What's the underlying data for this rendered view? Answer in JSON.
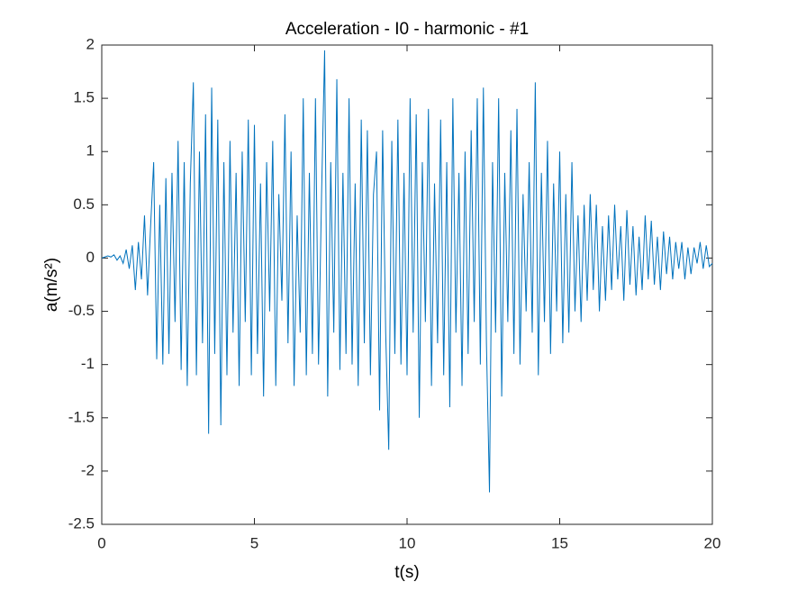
{
  "chart_data": {
    "type": "line",
    "title": "Acceleration - I0 - harmonic - #1",
    "xlabel": "t(s)",
    "ylabel": "a(m/s²)",
    "color": "#0072BD",
    "x": [
      0,
      0.1,
      0.2,
      0.3,
      0.4,
      0.5,
      0.6,
      0.7,
      0.8,
      0.9,
      1,
      1.1,
      1.2,
      1.3,
      1.4,
      1.5,
      1.6,
      1.7,
      1.8,
      1.9,
      2,
      2.1,
      2.2,
      2.3,
      2.4,
      2.5,
      2.6,
      2.7,
      2.8,
      2.9,
      3,
      3.1,
      3.2,
      3.3,
      3.4,
      3.5,
      3.6,
      3.7,
      3.8,
      3.9,
      4,
      4.1,
      4.2,
      4.3,
      4.4,
      4.5,
      4.6,
      4.7,
      4.8,
      4.9,
      5,
      5.1,
      5.2,
      5.3,
      5.4,
      5.5,
      5.6,
      5.7,
      5.8,
      5.9,
      6,
      6.1,
      6.2,
      6.3,
      6.4,
      6.5,
      6.6,
      6.7,
      6.8,
      6.9,
      7,
      7.1,
      7.2,
      7.3,
      7.4,
      7.5,
      7.6,
      7.7,
      7.8,
      7.9,
      8,
      8.1,
      8.2,
      8.3,
      8.4,
      8.5,
      8.6,
      8.7,
      8.8,
      8.9,
      9,
      9.1,
      9.2,
      9.3,
      9.4,
      9.5,
      9.6,
      9.7,
      9.8,
      9.9,
      10,
      10.1,
      10.2,
      10.3,
      10.4,
      10.5,
      10.6,
      10.7,
      10.8,
      10.9,
      11,
      11.1,
      11.2,
      11.3,
      11.4,
      11.5,
      11.6,
      11.7,
      11.8,
      11.9,
      12,
      12.1,
      12.2,
      12.3,
      12.4,
      12.5,
      12.6,
      12.7,
      12.8,
      12.9,
      13,
      13.1,
      13.2,
      13.3,
      13.4,
      13.5,
      13.6,
      13.7,
      13.8,
      13.9,
      14,
      14.1,
      14.2,
      14.3,
      14.4,
      14.5,
      14.6,
      14.7,
      14.8,
      14.9,
      15,
      15.1,
      15.2,
      15.3,
      15.4,
      15.5,
      15.6,
      15.7,
      15.8,
      15.9,
      16,
      16.1,
      16.2,
      16.3,
      16.4,
      16.5,
      16.6,
      16.7,
      16.8,
      16.9,
      17,
      17.1,
      17.2,
      17.3,
      17.4,
      17.5,
      17.6,
      17.7,
      17.8,
      17.9,
      18,
      18.1,
      18.2,
      18.3,
      18.4,
      18.5,
      18.6,
      18.7,
      18.8,
      18.9,
      19,
      19.1,
      19.2,
      19.3,
      19.4,
      19.5,
      19.6,
      19.7,
      19.8,
      19.9,
      20
    ],
    "values": [
      0,
      0.01,
      0.02,
      0.01,
      0.03,
      -0.02,
      0.02,
      -0.05,
      0.08,
      -0.1,
      0.12,
      -0.3,
      0.15,
      -0.2,
      0.4,
      -0.35,
      0.3,
      0.9,
      -0.95,
      0.5,
      -1.0,
      0.75,
      -0.9,
      0.8,
      -0.6,
      1.1,
      -1.05,
      0.9,
      -1.2,
      0.7,
      1.65,
      -1.1,
      1.0,
      -0.8,
      1.35,
      -1.65,
      1.6,
      -0.9,
      1.3,
      -1.57,
      0.9,
      -1.1,
      1.1,
      -0.7,
      0.8,
      -1.2,
      1.0,
      -0.6,
      1.3,
      -1.1,
      1.25,
      -0.9,
      0.7,
      -1.3,
      0.9,
      -0.5,
      1.1,
      -1.2,
      0.6,
      -0.4,
      1.35,
      -0.8,
      1.0,
      -1.2,
      0.4,
      -0.7,
      1.5,
      -1.1,
      0.8,
      -0.9,
      1.5,
      -1.0,
      0.6,
      1.95,
      -1.3,
      0.9,
      -0.7,
      1.68,
      -1.05,
      0.8,
      -0.9,
      1.5,
      -1.0,
      0.7,
      -1.2,
      1.3,
      -0.8,
      1.2,
      -1.1,
      0.6,
      1.0,
      -1.43,
      1.2,
      -0.7,
      -1.8,
      1.1,
      -0.9,
      1.3,
      -1.0,
      0.8,
      -1.1,
      1.5,
      -0.7,
      1.35,
      -1.5,
      0.9,
      -0.6,
      1.4,
      -1.2,
      0.7,
      -0.8,
      1.3,
      -1.1,
      0.9,
      -1.4,
      1.5,
      -0.7,
      0.8,
      -1.2,
      1.0,
      -0.9,
      1.2,
      -0.6,
      1.5,
      -1.0,
      1.6,
      -0.8,
      -2.2,
      0.9,
      -0.7,
      1.5,
      -1.3,
      0.8,
      -0.6,
      1.2,
      -0.9,
      1.4,
      -1.0,
      0.6,
      -0.5,
      0.9,
      -0.7,
      1.65,
      -1.1,
      0.8,
      -0.6,
      1.1,
      -0.9,
      0.7,
      -0.5,
      1.0,
      -0.8,
      0.6,
      -0.7,
      0.9,
      -0.5,
      0.4,
      -0.6,
      0.5,
      -0.4,
      0.6,
      -0.3,
      0.5,
      -0.5,
      0.3,
      -0.4,
      0.4,
      -0.3,
      0.5,
      -0.2,
      0.3,
      -0.4,
      0.45,
      -0.25,
      0.3,
      -0.35,
      0.2,
      -0.3,
      0.4,
      -0.2,
      0.35,
      -0.25,
      0.2,
      -0.3,
      0.25,
      -0.15,
      0.2,
      -0.2,
      0.15,
      -0.1,
      0.15,
      -0.2,
      0.1,
      -0.15,
      0.1,
      -0.05,
      0.15,
      -0.1,
      0.12,
      -0.08,
      -0.05
    ],
    "xlim": [
      0,
      20
    ],
    "xticks": [
      0,
      5,
      10,
      15,
      20
    ],
    "ylim": [
      -2.5,
      2
    ],
    "yticks": [
      -2.5,
      -2,
      -1.5,
      -1,
      -0.5,
      0,
      0.5,
      1,
      1.5,
      2
    ]
  }
}
